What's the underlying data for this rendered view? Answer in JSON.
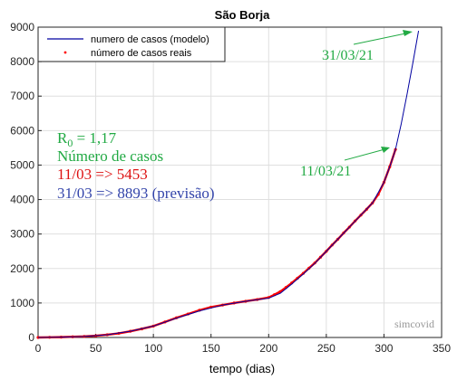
{
  "chart_data": {
    "type": "line",
    "title": "São Borja",
    "xlabel": "tempo (dias)",
    "ylabel": "",
    "xlim": [
      0,
      350
    ],
    "ylim": [
      0,
      9000
    ],
    "xticks": [
      0,
      50,
      100,
      150,
      200,
      250,
      300,
      350
    ],
    "yticks": [
      0,
      1000,
      2000,
      3000,
      4000,
      5000,
      6000,
      7000,
      8000,
      9000
    ],
    "grid": true,
    "legend_position": "top-left",
    "series": [
      {
        "name": "numero de casos (modelo)",
        "style": "line",
        "color": "#0000a0",
        "x": [
          0,
          20,
          40,
          60,
          80,
          100,
          120,
          140,
          160,
          180,
          200,
          210,
          220,
          230,
          240,
          250,
          260,
          270,
          280,
          290,
          300,
          305,
          310,
          315,
          320,
          325,
          330
        ],
        "y": [
          0,
          10,
          30,
          80,
          180,
          330,
          560,
          770,
          940,
          1050,
          1140,
          1280,
          1550,
          1840,
          2150,
          2500,
          2850,
          3200,
          3550,
          3900,
          4500,
          4950,
          5453,
          6200,
          7050,
          7950,
          8893
        ]
      },
      {
        "name": "número de casos reais",
        "style": "markers",
        "color": "#ff0000",
        "x": [
          0,
          10,
          20,
          30,
          40,
          50,
          60,
          70,
          80,
          90,
          100,
          110,
          120,
          130,
          140,
          150,
          160,
          170,
          180,
          190,
          200,
          205,
          210,
          215,
          220,
          225,
          230,
          235,
          240,
          245,
          250,
          255,
          260,
          265,
          270,
          275,
          280,
          285,
          290,
          295,
          300,
          305,
          310
        ],
        "y": [
          0,
          5,
          10,
          20,
          30,
          50,
          80,
          120,
          180,
          250,
          330,
          450,
          570,
          680,
          790,
          880,
          940,
          1000,
          1050,
          1100,
          1160,
          1240,
          1330,
          1450,
          1580,
          1720,
          1860,
          2010,
          2160,
          2330,
          2500,
          2680,
          2850,
          3030,
          3200,
          3380,
          3550,
          3720,
          3900,
          4150,
          4500,
          4950,
          5453
        ]
      }
    ],
    "annotations": {
      "r0_base": "R",
      "r0_sub": "0",
      "r0_rest": " = 1,17",
      "cases_label": "Número de casos",
      "line_0311": "11/03 => 5453",
      "line_3103": "31/03 => 8893 (previsão)",
      "date_0311": "11/03/21",
      "date_3103": "31/03/21",
      "watermark": "simcovid"
    },
    "colors": {
      "annotation_green": "#22aa44",
      "annotation_red": "#dd1111",
      "annotation_blue": "#3344aa",
      "watermark": "#999999"
    }
  }
}
